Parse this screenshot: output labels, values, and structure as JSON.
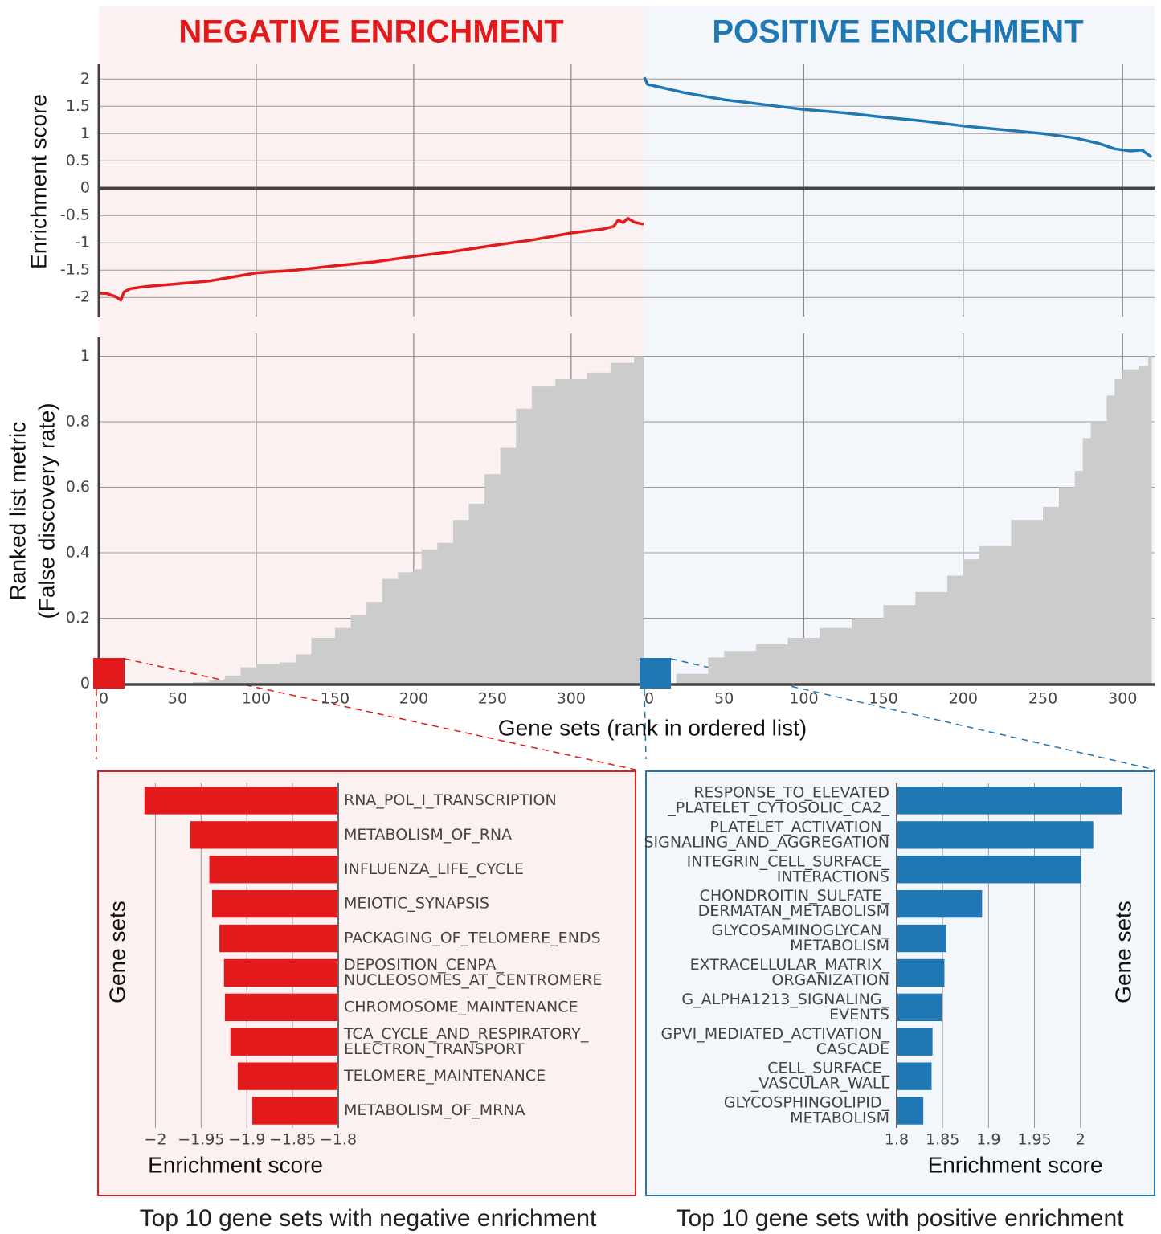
{
  "chart_data": [
    {
      "type": "line",
      "title": "NEGATIVE ENRICHMENT",
      "ylabel": "Enrichment score",
      "xlim": [
        0,
        346
      ],
      "ylim": [
        -2.35,
        2.21
      ],
      "yticks": [
        -2,
        -1.5,
        -1,
        -0.5,
        0,
        0.5,
        1,
        1.5,
        2
      ],
      "xgrid": [
        100,
        200,
        300
      ],
      "color": "#e31a1c",
      "x": [
        0,
        5,
        10,
        14,
        16,
        20,
        30,
        50,
        70,
        90,
        100,
        125,
        150,
        175,
        200,
        225,
        250,
        275,
        300,
        320,
        327,
        330,
        333,
        336,
        340,
        346
      ],
      "values": [
        -1.92,
        -1.93,
        -1.98,
        -2.05,
        -1.9,
        -1.84,
        -1.8,
        -1.75,
        -1.7,
        -1.6,
        -1.55,
        -1.5,
        -1.42,
        -1.35,
        -1.25,
        -1.16,
        -1.05,
        -0.95,
        -0.82,
        -0.75,
        -0.7,
        -0.58,
        -0.63,
        -0.55,
        -0.62,
        -0.66
      ]
    },
    {
      "type": "line",
      "title": "POSITIVE ENRICHMENT",
      "xlim": [
        0,
        318
      ],
      "ylim": [
        -2.35,
        2.21
      ],
      "xgrid": [
        100,
        200,
        300
      ],
      "color": "#1f78b4",
      "x": [
        0,
        2,
        10,
        25,
        50,
        75,
        100,
        125,
        150,
        175,
        200,
        225,
        250,
        270,
        285,
        295,
        305,
        312,
        318
      ],
      "values": [
        2.03,
        1.9,
        1.85,
        1.75,
        1.62,
        1.53,
        1.44,
        1.38,
        1.3,
        1.23,
        1.14,
        1.07,
        1.0,
        0.92,
        0.82,
        0.72,
        0.68,
        0.7,
        0.57
      ]
    },
    {
      "type": "area",
      "ylabel": [
        "Ranked list metric",
        "(False discovery rate)"
      ],
      "xlabel": "Gene sets (rank in ordered list)",
      "xlim": [
        0,
        346
      ],
      "ylim": [
        0,
        1.06
      ],
      "xticks": [
        0,
        50,
        100,
        150,
        200,
        250,
        300
      ],
      "yticks": [
        0,
        0.2,
        0.4,
        0.6,
        0.8,
        1
      ],
      "xgrid": [
        100,
        200,
        300
      ],
      "color": "#cccccc",
      "x": [
        0,
        60,
        70,
        80,
        90,
        100,
        115,
        125,
        135,
        150,
        160,
        170,
        180,
        190,
        200,
        205,
        215,
        225,
        235,
        245,
        255,
        265,
        275,
        290,
        310,
        325,
        340
      ],
      "values": [
        0,
        0.005,
        0.01,
        0.025,
        0.05,
        0.06,
        0.065,
        0.09,
        0.14,
        0.17,
        0.21,
        0.25,
        0.32,
        0.34,
        0.35,
        0.41,
        0.43,
        0.5,
        0.55,
        0.64,
        0.72,
        0.84,
        0.91,
        0.93,
        0.95,
        0.98,
        1
      ]
    },
    {
      "type": "area",
      "xlim": [
        0,
        318
      ],
      "ylim": [
        0,
        1.06
      ],
      "xticks": [
        0,
        50,
        100,
        150,
        200,
        250,
        300
      ],
      "xgrid": [
        100,
        200,
        300
      ],
      "color": "#cccccc",
      "x": [
        0,
        20,
        40,
        50,
        70,
        90,
        110,
        130,
        150,
        170,
        190,
        200,
        210,
        230,
        250,
        260,
        270,
        275,
        280,
        290,
        295,
        300,
        310,
        316
      ],
      "values": [
        0,
        0.03,
        0.08,
        0.1,
        0.12,
        0.14,
        0.17,
        0.2,
        0.24,
        0.28,
        0.33,
        0.38,
        0.42,
        0.5,
        0.54,
        0.6,
        0.65,
        0.75,
        0.8,
        0.88,
        0.93,
        0.96,
        0.97,
        1
      ]
    },
    {
      "type": "barh",
      "caption": "Top 10 gene sets with negative enrichment",
      "xlabel": "Enrichment score",
      "ylabel": "Gene sets",
      "axis_side": "right",
      "xlim": [
        -2.025,
        -1.8
      ],
      "color": "#e31a1c",
      "xticks": [
        {
          "value": -2,
          "label": "−2"
        },
        {
          "value": -1.95,
          "label": "−1.95"
        },
        {
          "value": -1.9,
          "label": "−1.9"
        },
        {
          "value": -1.85,
          "label": "−1.85"
        },
        {
          "value": -1.8,
          "label": "−1.8"
        }
      ],
      "categories": [
        [
          "RNA_POL_I_TRANSCRIPTION"
        ],
        [
          "METABOLISM_OF_RNA"
        ],
        [
          "INFLUENZA_LIFE_CYCLE"
        ],
        [
          "MEIOTIC_SYNAPSIS"
        ],
        [
          "PACKAGING_OF_TELOMERE_ENDS"
        ],
        [
          "DEPOSITION_CENPA_",
          "NUCLEOSOMES_AT_CENTROMERE"
        ],
        [
          "CHROMOSOME_MAINTENANCE"
        ],
        [
          "TCA_CYCLE_AND_RESPIRATORY_",
          "ELECTRON_TRANSPORT"
        ],
        [
          "TELOMERE_MAINTENANCE"
        ],
        [
          "METABOLISM_OF_MRNA"
        ]
      ],
      "values": [
        -2.012,
        -1.962,
        -1.941,
        -1.938,
        -1.93,
        -1.925,
        -1.924,
        -1.918,
        -1.91,
        -1.894
      ]
    },
    {
      "type": "barh",
      "caption": "Top 10 gene sets with positive enrichment",
      "xlabel": "Enrichment score",
      "ylabel": "Gene sets",
      "axis_side": "left",
      "xlim": [
        1.8,
        2.058
      ],
      "color": "#1f78b4",
      "xticks": [
        1.8,
        1.85,
        1.9,
        1.95,
        2
      ],
      "categories": [
        [
          "RESPONSE_TO_ELEVATED",
          "_PLATELET_CYTOSOLIC_CA2_"
        ],
        [
          "PLATELET_ACTIVATION_",
          "SIGNALING_AND_AGGREGATION"
        ],
        [
          "INTEGRIN_CELL_SURFACE_",
          "INTERACTIONS"
        ],
        [
          "CHONDROITIN_SULFATE_",
          "DERMATAN_METABOLISM"
        ],
        [
          "GLYCOSAMINOGLYCAN_",
          "METABOLISM"
        ],
        [
          "EXTRACELLULAR_MATRIX_",
          "ORGANIZATION"
        ],
        [
          "G_ALPHA1213_SIGNALING_",
          "EVENTS"
        ],
        [
          "GPVI_MEDIATED_ACTIVATION_",
          "CASCADE"
        ],
        [
          "CELL_SURFACE_",
          "_VASCULAR_WALL"
        ],
        [
          "GLYCOSPHINGOLIPID_",
          "METABOLISM"
        ]
      ],
      "values": [
        2.045,
        2.014,
        2.001,
        1.893,
        1.854,
        1.852,
        1.849,
        1.839,
        1.838,
        1.829
      ]
    }
  ]
}
